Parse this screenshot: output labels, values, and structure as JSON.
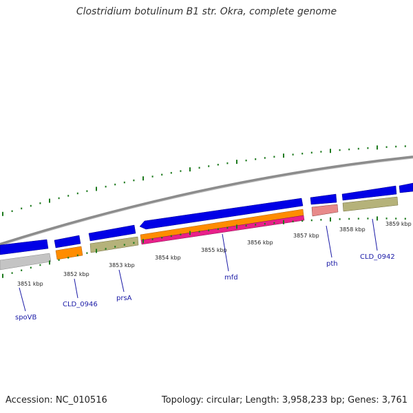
{
  "title": "Clostridium botulinum B1 str. Okra, complete genome",
  "footer": {
    "accession": "Accession: NC_010516",
    "summary": "Topology: circular; Length: 3,958,233 bp; Genes: 3,761"
  },
  "colors": {
    "backbone": "#8c8c8c",
    "cds": "#0000e6",
    "gene_feature": "#b5b27a",
    "orange_feature": "#ff8c00",
    "pink_feature": "#e8208a",
    "salmon_feature": "#e88a8a",
    "gray_feature": "#c4c4c4",
    "ticks": "#1e7a1e",
    "label": "#1a1aa6"
  },
  "axis_labels": [
    "3851 kbp",
    "3852 kbp",
    "3853 kbp",
    "3854 kbp",
    "3855 kbp",
    "3856 kbp",
    "3857 kbp",
    "3858 kbp",
    "3859 kbp"
  ],
  "gene_labels": [
    "spoVB",
    "CLD_0946",
    "prsA",
    "mfd",
    "pth",
    "CLD_0942"
  ]
}
